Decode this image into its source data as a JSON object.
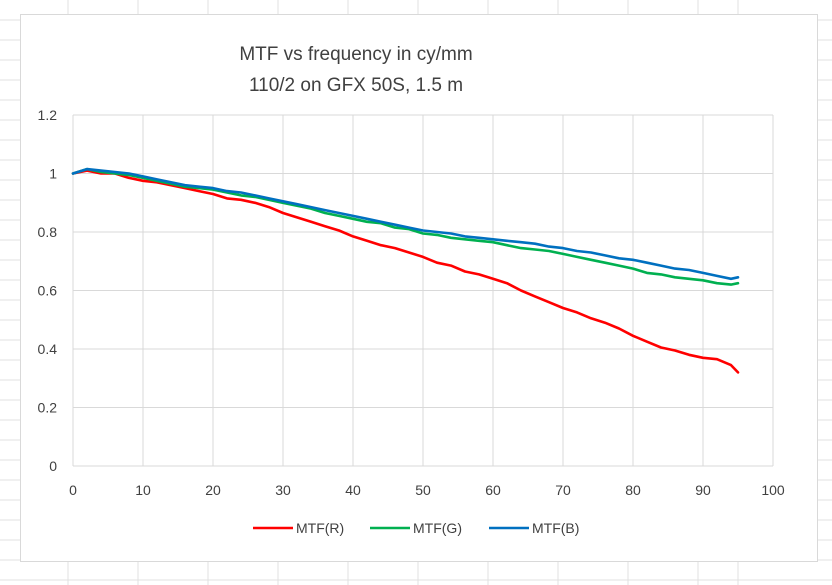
{
  "chart_data": {
    "type": "line",
    "title": "MTF vs frequency in cy/mm",
    "subtitle": "110/2 on GFX 50S, 1.5 m",
    "xlabel": "",
    "ylabel": "",
    "xlim": [
      0,
      100
    ],
    "ylim": [
      0,
      1.2
    ],
    "xticks": [
      "0",
      "10",
      "20",
      "30",
      "40",
      "50",
      "60",
      "70",
      "80",
      "90",
      "100"
    ],
    "yticks": [
      "0",
      "0.2",
      "0.4",
      "0.6",
      "0.8",
      "1",
      "1.2"
    ],
    "grid": true,
    "legend_position": "bottom",
    "x": [
      0,
      2,
      4,
      6,
      8,
      10,
      12,
      14,
      16,
      18,
      20,
      22,
      24,
      26,
      28,
      30,
      32,
      34,
      36,
      38,
      40,
      42,
      44,
      46,
      48,
      50,
      52,
      54,
      56,
      58,
      60,
      62,
      64,
      66,
      68,
      70,
      72,
      74,
      76,
      78,
      80,
      82,
      84,
      86,
      88,
      90,
      92,
      94,
      95
    ],
    "series": [
      {
        "name": "MTF(R)",
        "color": "#ff0000",
        "values": [
          1.0,
          1.01,
          1.0,
          1.0,
          0.985,
          0.975,
          0.97,
          0.96,
          0.95,
          0.94,
          0.93,
          0.915,
          0.91,
          0.9,
          0.885,
          0.865,
          0.85,
          0.835,
          0.82,
          0.805,
          0.785,
          0.77,
          0.755,
          0.745,
          0.73,
          0.715,
          0.695,
          0.685,
          0.665,
          0.655,
          0.64,
          0.625,
          0.6,
          0.58,
          0.56,
          0.54,
          0.525,
          0.505,
          0.49,
          0.47,
          0.445,
          0.425,
          0.405,
          0.395,
          0.38,
          0.37,
          0.365,
          0.345,
          0.32
        ]
      },
      {
        "name": "MTF(G)",
        "color": "#00b050",
        "values": [
          1.0,
          1.015,
          1.005,
          1.0,
          0.995,
          0.985,
          0.975,
          0.965,
          0.955,
          0.95,
          0.945,
          0.935,
          0.925,
          0.92,
          0.91,
          0.9,
          0.89,
          0.88,
          0.865,
          0.855,
          0.845,
          0.835,
          0.83,
          0.815,
          0.81,
          0.795,
          0.79,
          0.78,
          0.775,
          0.77,
          0.765,
          0.755,
          0.745,
          0.74,
          0.735,
          0.725,
          0.715,
          0.705,
          0.695,
          0.685,
          0.675,
          0.66,
          0.655,
          0.645,
          0.64,
          0.635,
          0.625,
          0.62,
          0.625
        ]
      },
      {
        "name": "MTF(B)",
        "color": "#0070c0",
        "values": [
          1.0,
          1.015,
          1.01,
          1.005,
          1.0,
          0.99,
          0.98,
          0.97,
          0.96,
          0.955,
          0.95,
          0.94,
          0.935,
          0.925,
          0.915,
          0.905,
          0.895,
          0.885,
          0.875,
          0.865,
          0.855,
          0.845,
          0.835,
          0.825,
          0.815,
          0.805,
          0.8,
          0.795,
          0.785,
          0.78,
          0.775,
          0.77,
          0.765,
          0.76,
          0.75,
          0.745,
          0.735,
          0.73,
          0.72,
          0.71,
          0.705,
          0.695,
          0.685,
          0.675,
          0.67,
          0.66,
          0.65,
          0.64,
          0.645
        ]
      }
    ]
  }
}
